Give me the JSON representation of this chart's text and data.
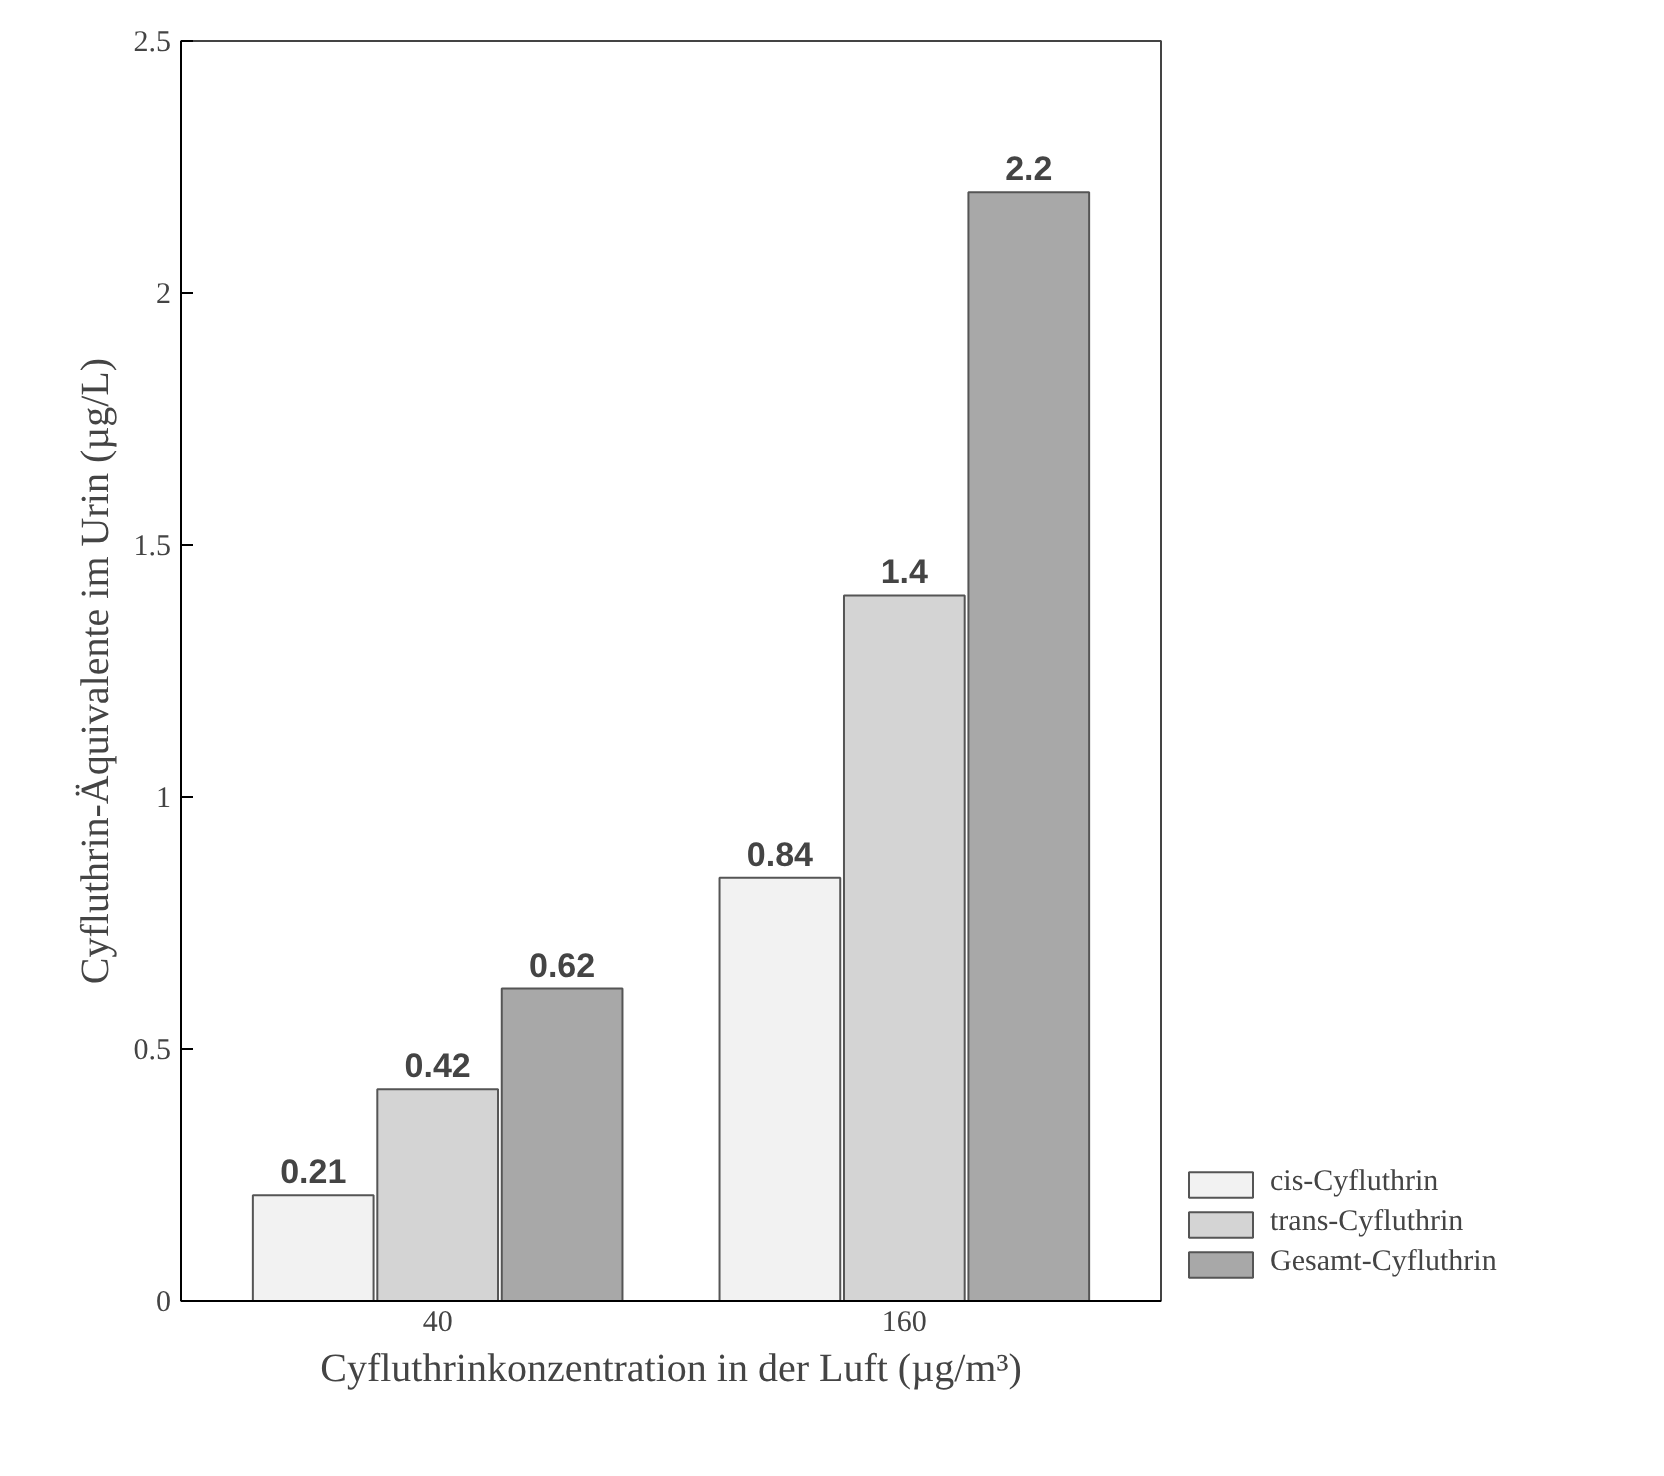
{
  "chart_data": {
    "type": "bar",
    "xlabel": "Cyfluthrinkonzentration in der Luft (µg/m³)",
    "ylabel": "Cyfluthrin-Äquivalente im Urin (µg/L)",
    "categories": [
      "40",
      "160"
    ],
    "series": [
      {
        "name": "cis-Cyfluthrin",
        "color": "#f2f2f2",
        "values": [
          0.21,
          0.84
        ]
      },
      {
        "name": "trans-Cyfluthrin",
        "color": "#d4d4d4",
        "values": [
          0.42,
          1.4
        ]
      },
      {
        "name": "Gesamt-Cyfluthrin",
        "color": "#a8a8a8",
        "values": [
          0.62,
          2.2
        ]
      }
    ],
    "ylim": [
      0,
      2.5
    ],
    "yticks": [
      0,
      0.5,
      1,
      1.5,
      2,
      2.5
    ],
    "data_labels": true,
    "grid": false,
    "legend": "bottom right"
  }
}
